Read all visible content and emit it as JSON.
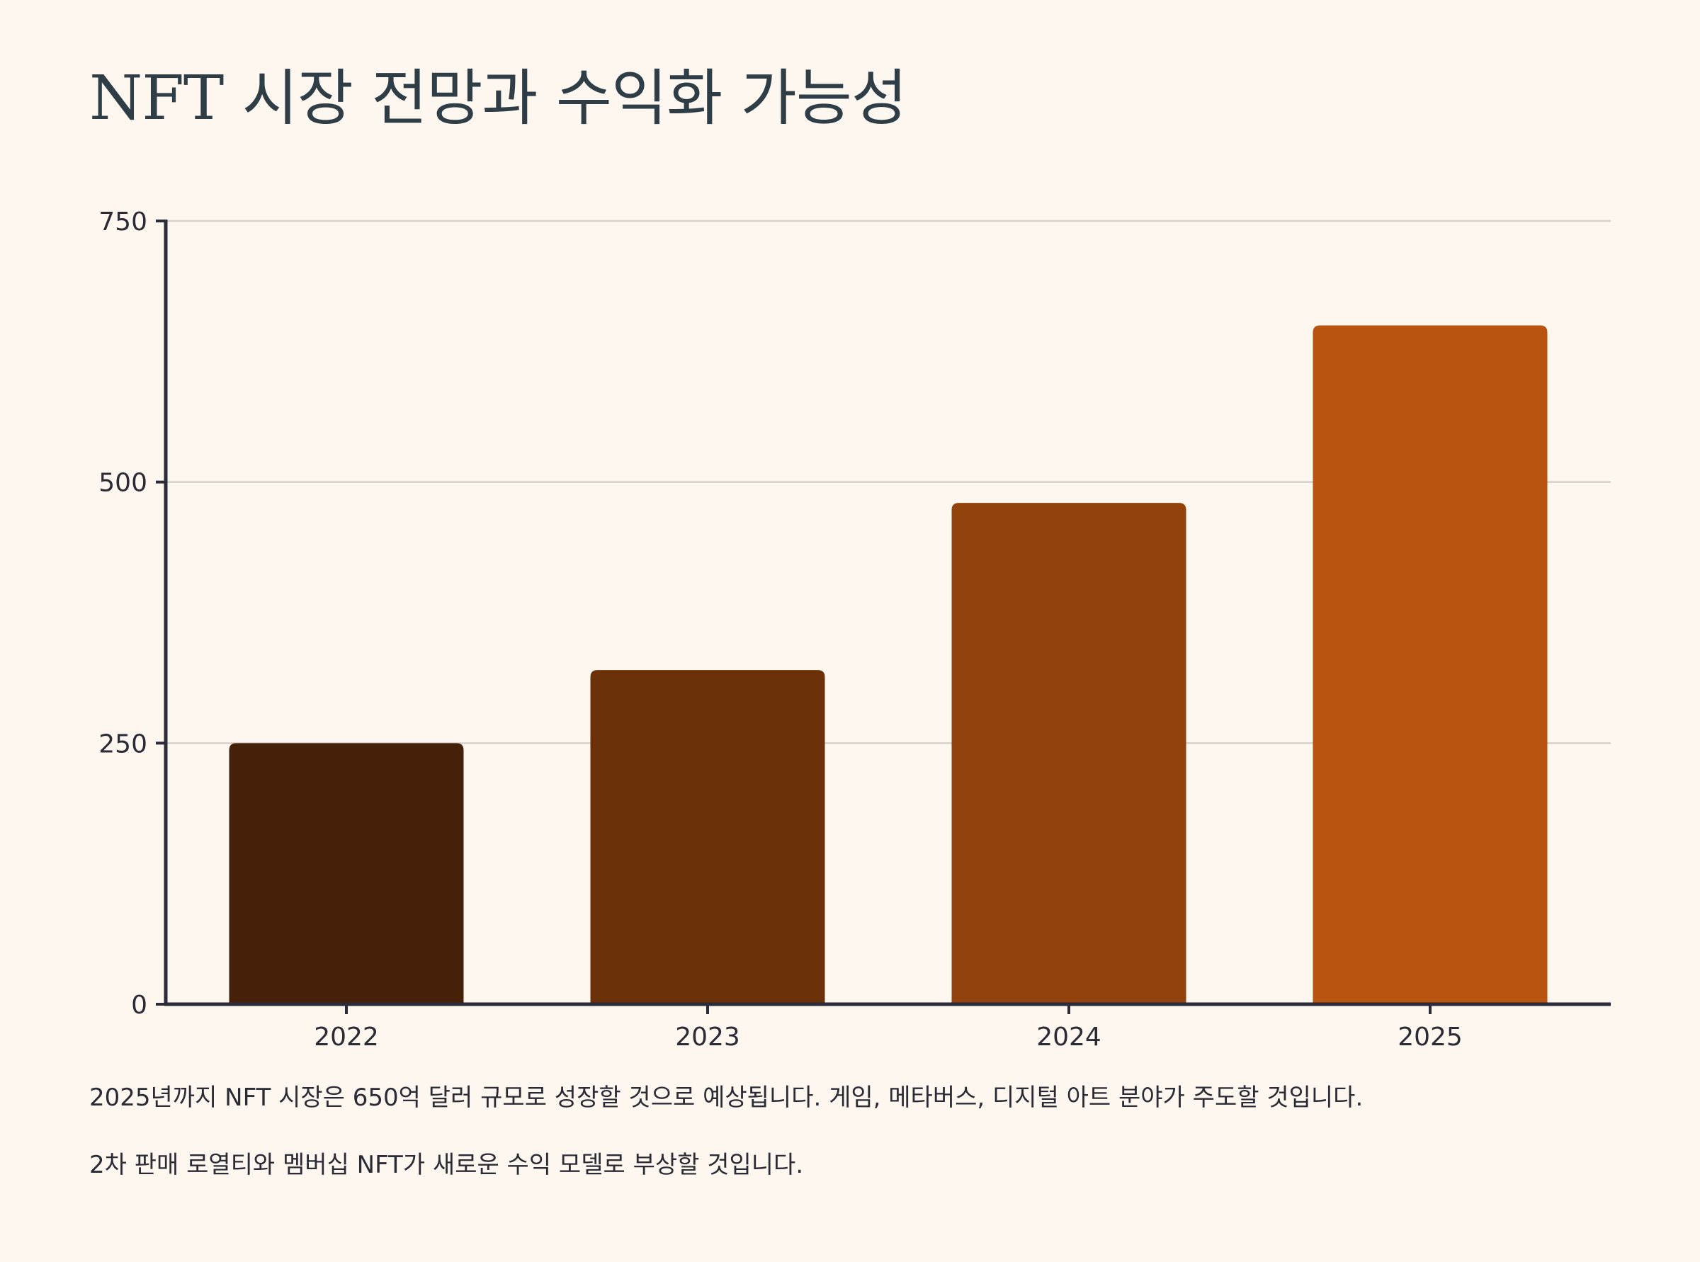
{
  "page": {
    "title": "NFT 시장 전망과 수익화 가능성",
    "notes": [
      "2025년까지 NFT 시장은 650억 달러 규모로 성장할 것으로 예상됩니다. 게임, 메타버스, 디지털 아트 분야가 주도할 것입니다.",
      "2차 판매 로열티와 멤버십 NFT가 새로운 수익 모델로 부상할 것입니다."
    ]
  },
  "chart_data": {
    "type": "bar",
    "title": "",
    "xlabel": "",
    "ylabel": "",
    "categories": [
      "2022",
      "2023",
      "2024",
      "2025"
    ],
    "values": [
      250,
      320,
      480,
      650
    ],
    "ylim": [
      0,
      750
    ],
    "yticks": [
      0,
      250,
      500,
      750
    ],
    "grid": true,
    "legend": "none",
    "colors": [
      "#45210a",
      "#6b3209",
      "#92420c",
      "#b8540f"
    ],
    "axis_color": "#2b2b3a",
    "grid_color": "#d4d1cb"
  }
}
